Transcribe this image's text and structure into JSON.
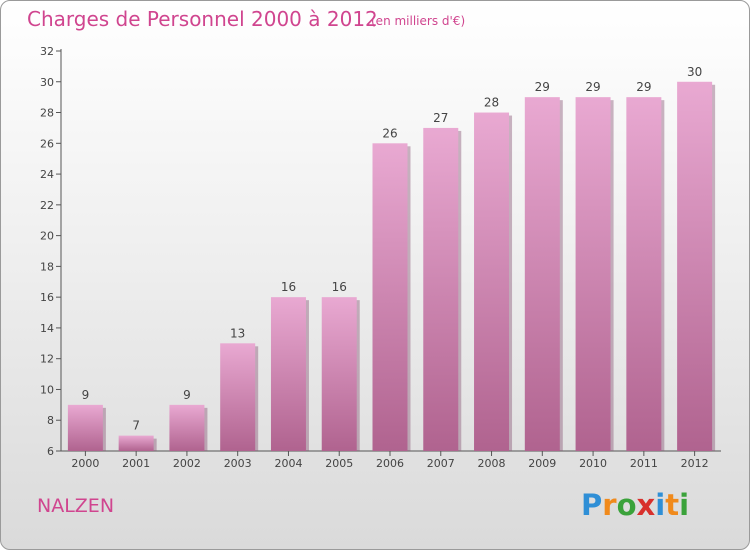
{
  "header": {
    "title": "Charges de Personnel 2000 à 2012",
    "subtitle": "(en milliers d'€)"
  },
  "location": "NALZEN",
  "logo": {
    "letters": [
      "P",
      "r",
      "o",
      "x",
      "i",
      "t",
      "i"
    ],
    "colors": [
      "#2f8fd6",
      "#f08a1c",
      "#3aa23a",
      "#d8302c",
      "#2f8fd6",
      "#f08a1c",
      "#3aa23a"
    ]
  },
  "colors": {
    "bar_top": "#e9a9d2",
    "bar_bottom": "#b0638f",
    "bar_shadow": "#8c5a79",
    "axis": "#555555",
    "text": "#444444",
    "accent": "#d0458f"
  },
  "chart_data": {
    "type": "bar",
    "categories": [
      "2000",
      "2001",
      "2002",
      "2003",
      "2004",
      "2005",
      "2006",
      "2007",
      "2008",
      "2009",
      "2010",
      "2011",
      "2012"
    ],
    "values": [
      9,
      7,
      9,
      13,
      16,
      16,
      26,
      27,
      28,
      29,
      29,
      29,
      30
    ],
    "ylim": [
      6,
      32
    ],
    "yticks": [
      6,
      8,
      10,
      12,
      14,
      16,
      18,
      20,
      22,
      24,
      26,
      28,
      30,
      32
    ],
    "grid": false,
    "data_labels": true
  }
}
